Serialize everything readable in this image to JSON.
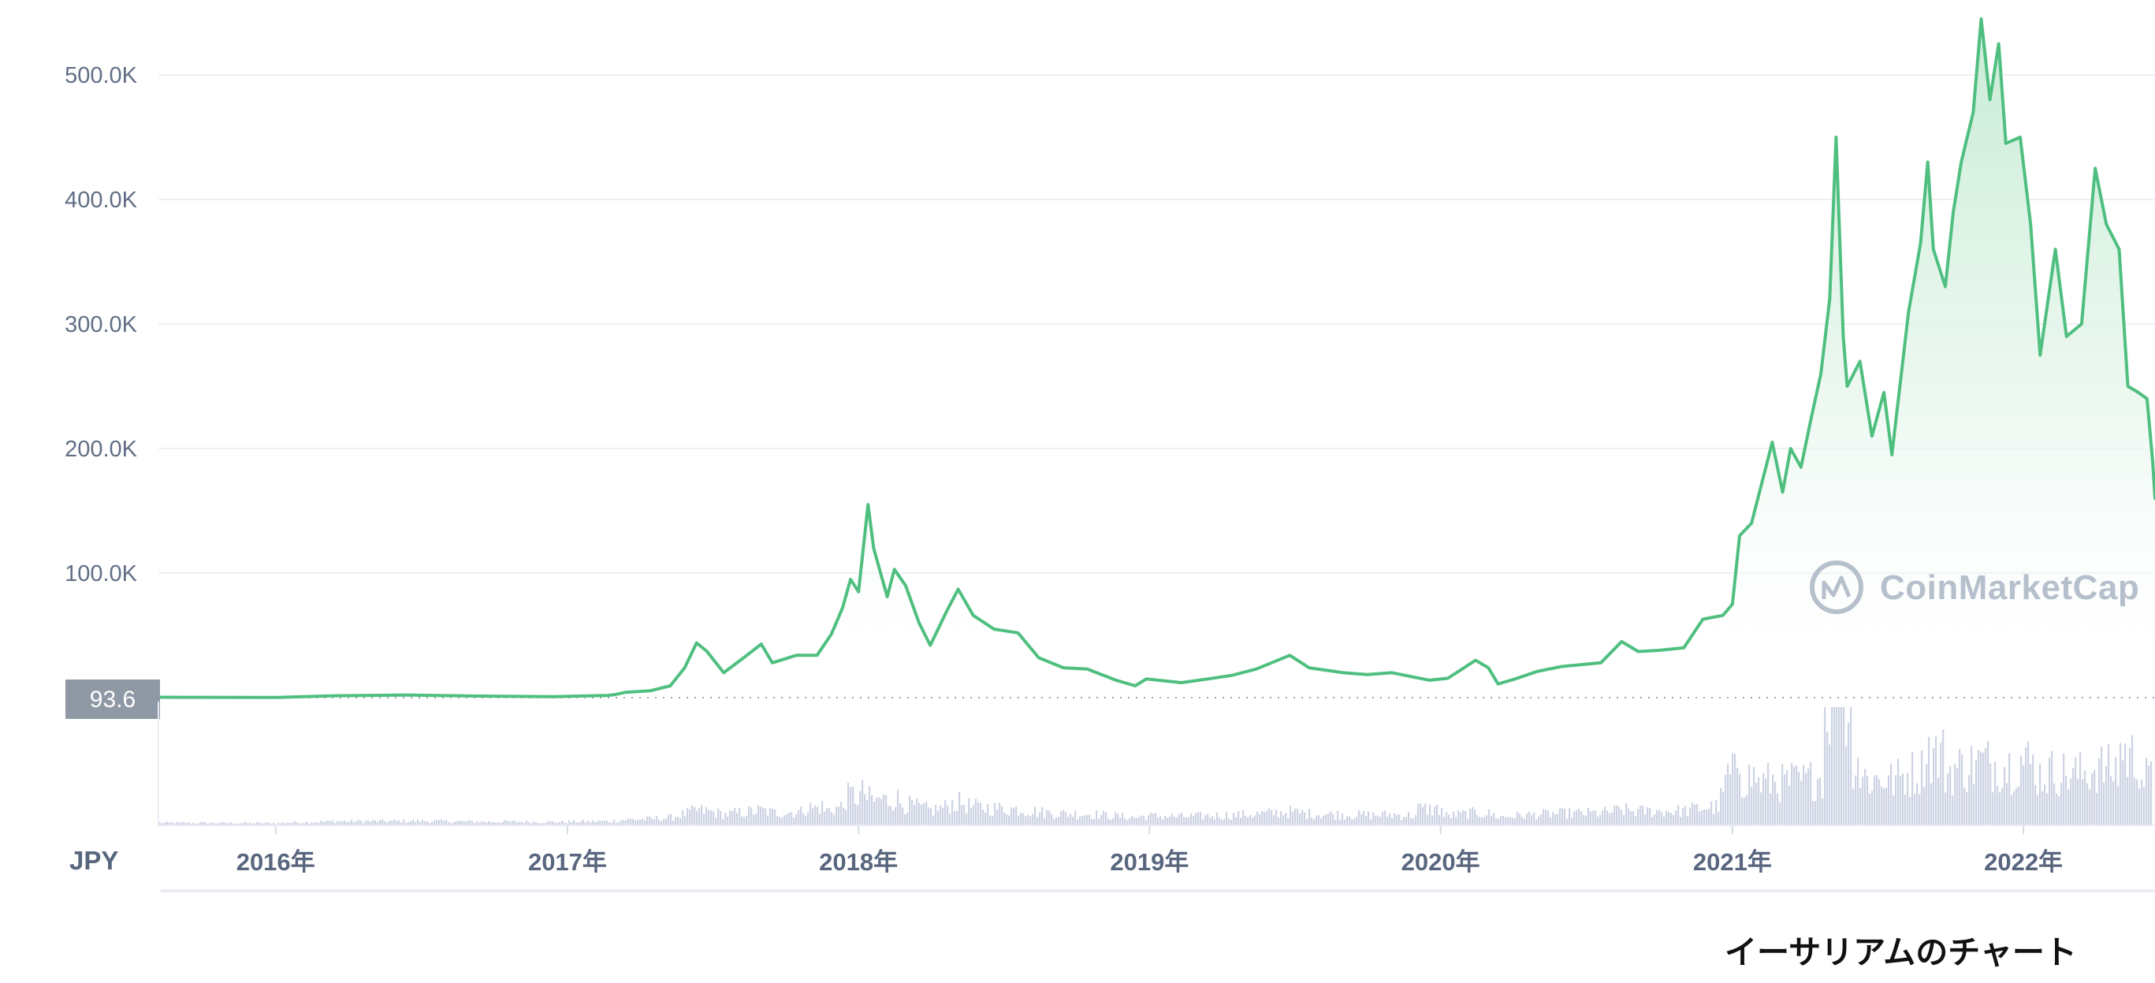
{
  "chart_data": {
    "type": "area",
    "title": "",
    "caption": "イーサリアムのチャート",
    "currency_label": "JPY",
    "watermark": "CoinMarketCap",
    "current_price_label": "93.6",
    "current_price_value": 93.6,
    "ylim": [
      0,
      560000
    ],
    "y_ticks": [
      {
        "value": 100000,
        "label": "100.0K"
      },
      {
        "value": 200000,
        "label": "200.0K"
      },
      {
        "value": 300000,
        "label": "300.0K"
      },
      {
        "value": 400000,
        "label": "400.0K"
      },
      {
        "value": 500000,
        "label": "500.0K"
      }
    ],
    "x_range": [
      "2015-08-07",
      "2022-06-15"
    ],
    "x_ticks": [
      {
        "date": "2016-01-01",
        "label": "2016年"
      },
      {
        "date": "2017-01-01",
        "label": "2017年"
      },
      {
        "date": "2018-01-01",
        "label": "2018年"
      },
      {
        "date": "2019-01-01",
        "label": "2019年"
      },
      {
        "date": "2020-01-01",
        "label": "2020年"
      },
      {
        "date": "2021-01-01",
        "label": "2021年"
      },
      {
        "date": "2022-01-01",
        "label": "2022年"
      }
    ],
    "grid": true,
    "legend": "none",
    "colors": {
      "line": "#4fbf80",
      "area_top": "#c6ebd3",
      "volume": "#cdd3e3",
      "grid": "#eef0f4",
      "axis_text": "#616e85",
      "price_tag": "#8f98a5",
      "watermark": "#b6bfcc"
    },
    "series": [
      {
        "name": "",
        "values": [
          [
            "2015-08-07",
            300
          ],
          [
            "2016-01-01",
            150
          ],
          [
            "2016-03-15",
            1500
          ],
          [
            "2016-06-17",
            2100
          ],
          [
            "2016-09-01",
            1300
          ],
          [
            "2016-12-15",
            850
          ],
          [
            "2017-02-20",
            1800
          ],
          [
            "2017-03-01",
            2400
          ],
          [
            "2017-03-15",
            4300
          ],
          [
            "2017-04-15",
            5500
          ],
          [
            "2017-05-10",
            9500
          ],
          [
            "2017-05-28",
            24000
          ],
          [
            "2017-06-12",
            44000
          ],
          [
            "2017-06-25",
            37000
          ],
          [
            "2017-07-16",
            20000
          ],
          [
            "2017-08-10",
            32000
          ],
          [
            "2017-09-01",
            43000
          ],
          [
            "2017-09-15",
            28000
          ],
          [
            "2017-10-15",
            34000
          ],
          [
            "2017-11-10",
            34000
          ],
          [
            "2017-11-28",
            51000
          ],
          [
            "2017-12-12",
            72000
          ],
          [
            "2017-12-22",
            95000
          ],
          [
            "2018-01-01",
            85000
          ],
          [
            "2018-01-13",
            155000
          ],
          [
            "2018-01-20",
            120000
          ],
          [
            "2018-02-06",
            81000
          ],
          [
            "2018-02-15",
            103000
          ],
          [
            "2018-03-01",
            90000
          ],
          [
            "2018-03-18",
            60000
          ],
          [
            "2018-04-01",
            42000
          ],
          [
            "2018-04-22",
            70000
          ],
          [
            "2018-05-06",
            87000
          ],
          [
            "2018-05-25",
            66000
          ],
          [
            "2018-06-20",
            55000
          ],
          [
            "2018-07-20",
            52000
          ],
          [
            "2018-08-15",
            32000
          ],
          [
            "2018-09-15",
            24000
          ],
          [
            "2018-10-15",
            23000
          ],
          [
            "2018-11-20",
            14000
          ],
          [
            "2018-12-14",
            9500
          ],
          [
            "2018-12-28",
            15000
          ],
          [
            "2019-01-20",
            13500
          ],
          [
            "2019-02-10",
            12000
          ],
          [
            "2019-03-15",
            15000
          ],
          [
            "2019-04-15",
            18000
          ],
          [
            "2019-05-15",
            23000
          ],
          [
            "2019-06-26",
            34000
          ],
          [
            "2019-07-20",
            24000
          ],
          [
            "2019-09-01",
            20000
          ],
          [
            "2019-10-01",
            18500
          ],
          [
            "2019-11-01",
            20000
          ],
          [
            "2019-12-18",
            14000
          ],
          [
            "2020-01-10",
            15500
          ],
          [
            "2020-02-14",
            30000
          ],
          [
            "2020-03-01",
            24000
          ],
          [
            "2020-03-13",
            11000
          ],
          [
            "2020-04-01",
            14500
          ],
          [
            "2020-05-01",
            21000
          ],
          [
            "2020-06-01",
            25000
          ],
          [
            "2020-07-20",
            28000
          ],
          [
            "2020-08-15",
            45000
          ],
          [
            "2020-09-05",
            37000
          ],
          [
            "2020-10-01",
            38000
          ],
          [
            "2020-11-01",
            40000
          ],
          [
            "2020-11-25",
            63000
          ],
          [
            "2020-12-20",
            66000
          ],
          [
            "2021-01-01",
            75000
          ],
          [
            "2021-01-10",
            130000
          ],
          [
            "2021-01-25",
            140000
          ],
          [
            "2021-02-10",
            180000
          ],
          [
            "2021-02-20",
            205000
          ],
          [
            "2021-03-05",
            165000
          ],
          [
            "2021-03-15",
            200000
          ],
          [
            "2021-03-28",
            185000
          ],
          [
            "2021-04-10",
            225000
          ],
          [
            "2021-04-22",
            260000
          ],
          [
            "2021-05-03",
            320000
          ],
          [
            "2021-05-11",
            450000
          ],
          [
            "2021-05-20",
            290000
          ],
          [
            "2021-05-25",
            250000
          ],
          [
            "2021-06-10",
            270000
          ],
          [
            "2021-06-25",
            210000
          ],
          [
            "2021-07-10",
            245000
          ],
          [
            "2021-07-20",
            195000
          ],
          [
            "2021-08-10",
            310000
          ],
          [
            "2021-08-25",
            365000
          ],
          [
            "2021-09-03",
            430000
          ],
          [
            "2021-09-10",
            360000
          ],
          [
            "2021-09-25",
            330000
          ],
          [
            "2021-10-05",
            390000
          ],
          [
            "2021-10-15",
            430000
          ],
          [
            "2021-10-30",
            470000
          ],
          [
            "2021-11-09",
            545000
          ],
          [
            "2021-11-20",
            480000
          ],
          [
            "2021-12-01",
            525000
          ],
          [
            "2021-12-10",
            445000
          ],
          [
            "2021-12-28",
            450000
          ],
          [
            "2022-01-10",
            380000
          ],
          [
            "2022-01-22",
            275000
          ],
          [
            "2022-02-10",
            360000
          ],
          [
            "2022-02-24",
            290000
          ],
          [
            "2022-03-15",
            300000
          ],
          [
            "2022-04-01",
            425000
          ],
          [
            "2022-04-15",
            380000
          ],
          [
            "2022-05-01",
            360000
          ],
          [
            "2022-05-12",
            250000
          ],
          [
            "2022-05-25",
            245000
          ],
          [
            "2022-06-05",
            240000
          ],
          [
            "2022-06-12",
            190000
          ],
          [
            "2022-06-15",
            160000
          ]
        ]
      }
    ]
  }
}
